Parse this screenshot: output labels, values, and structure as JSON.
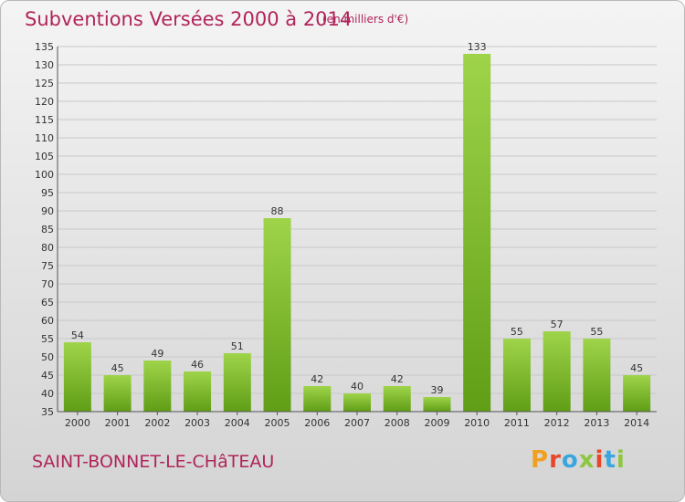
{
  "header": {
    "title": "Subventions Versées 2000 à 2014",
    "unit": "(en milliers d'€)"
  },
  "footer": {
    "place": "SAINT-BONNET-LE-CHâTEAU",
    "logo": [
      "P",
      "r",
      "o",
      "x",
      "i",
      "t",
      "i"
    ]
  },
  "colors": {
    "title": "#b0245a",
    "bar_top": "#9fd44a",
    "bar_bottom": "#5f9e16",
    "logo": [
      "#f0a020",
      "#e8462b",
      "#3aa6df",
      "#8dc63f",
      "#e8462b",
      "#3aa6df",
      "#8dc63f"
    ]
  },
  "chart_data": {
    "type": "bar",
    "categories": [
      "2000",
      "2001",
      "2002",
      "2003",
      "2004",
      "2005",
      "2006",
      "2007",
      "2008",
      "2009",
      "2010",
      "2011",
      "2012",
      "2013",
      "2014"
    ],
    "values": [
      54,
      45,
      49,
      46,
      51,
      88,
      42,
      40,
      42,
      39,
      133,
      55,
      57,
      55,
      45
    ],
    "data_labels": [
      "54",
      "45",
      "49",
      "46",
      "51",
      "88",
      "42",
      "40",
      "42",
      "39",
      "133",
      "55",
      "57",
      "55",
      "45"
    ],
    "ylim": [
      35,
      135
    ],
    "yticks": [
      35,
      40,
      45,
      50,
      55,
      60,
      65,
      70,
      75,
      80,
      85,
      90,
      95,
      100,
      105,
      110,
      115,
      120,
      125,
      130,
      135
    ],
    "grid": true,
    "legend": "none"
  }
}
